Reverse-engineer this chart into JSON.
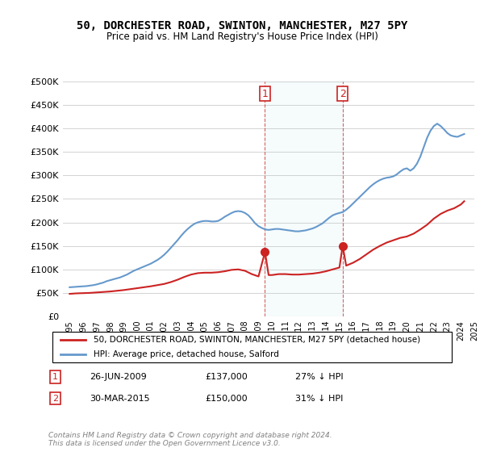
{
  "title": "50, DORCHESTER ROAD, SWINTON, MANCHESTER, M27 5PY",
  "subtitle": "Price paid vs. HM Land Registry's House Price Index (HPI)",
  "xlabel": "",
  "ylabel": "",
  "ylim": [
    0,
    500000
  ],
  "yticks": [
    0,
    50000,
    100000,
    150000,
    200000,
    250000,
    300000,
    350000,
    400000,
    450000,
    500000
  ],
  "ytick_labels": [
    "£0",
    "£50K",
    "£100K",
    "£150K",
    "£200K",
    "£250K",
    "£300K",
    "£350K",
    "£400K",
    "£450K",
    "£500K"
  ],
  "background_color": "#ffffff",
  "plot_bg_color": "#ffffff",
  "hpi_color": "#6699cc",
  "price_color": "#cc2222",
  "sale1_date": 2009.48,
  "sale1_price": 137000,
  "sale2_date": 2015.24,
  "sale2_price": 150000,
  "legend_entries": [
    "50, DORCHESTER ROAD, SWINTON, MANCHESTER, M27 5PY (detached house)",
    "HPI: Average price, detached house, Salford"
  ],
  "annotation1": [
    "1",
    "26-JUN-2009",
    "£137,000",
    "27% ↓ HPI"
  ],
  "annotation2": [
    "2",
    "30-MAR-2015",
    "£150,000",
    "31% ↓ HPI"
  ],
  "footer": "Contains HM Land Registry data © Crown copyright and database right 2024.\nThis data is licensed under the Open Government Licence v3.0.",
  "hpi_data": {
    "years": [
      1995.0,
      1995.25,
      1995.5,
      1995.75,
      1996.0,
      1996.25,
      1996.5,
      1996.75,
      1997.0,
      1997.25,
      1997.5,
      1997.75,
      1998.0,
      1998.25,
      1998.5,
      1998.75,
      1999.0,
      1999.25,
      1999.5,
      1999.75,
      2000.0,
      2000.25,
      2000.5,
      2000.75,
      2001.0,
      2001.25,
      2001.5,
      2001.75,
      2002.0,
      2002.25,
      2002.5,
      2002.75,
      2003.0,
      2003.25,
      2003.5,
      2003.75,
      2004.0,
      2004.25,
      2004.5,
      2004.75,
      2005.0,
      2005.25,
      2005.5,
      2005.75,
      2006.0,
      2006.25,
      2006.5,
      2006.75,
      2007.0,
      2007.25,
      2007.5,
      2007.75,
      2008.0,
      2008.25,
      2008.5,
      2008.75,
      2009.0,
      2009.25,
      2009.5,
      2009.75,
      2010.0,
      2010.25,
      2010.5,
      2010.75,
      2011.0,
      2011.25,
      2011.5,
      2011.75,
      2012.0,
      2012.25,
      2012.5,
      2012.75,
      2013.0,
      2013.25,
      2013.5,
      2013.75,
      2014.0,
      2014.25,
      2014.5,
      2014.75,
      2015.0,
      2015.25,
      2015.5,
      2015.75,
      2016.0,
      2016.25,
      2016.5,
      2016.75,
      2017.0,
      2017.25,
      2017.5,
      2017.75,
      2018.0,
      2018.25,
      2018.5,
      2018.75,
      2019.0,
      2019.25,
      2019.5,
      2019.75,
      2020.0,
      2020.25,
      2020.5,
      2020.75,
      2021.0,
      2021.25,
      2021.5,
      2021.75,
      2022.0,
      2022.25,
      2022.5,
      2022.75,
      2023.0,
      2023.25,
      2023.5,
      2023.75,
      2024.0,
      2024.25
    ],
    "values": [
      62000,
      62500,
      63000,
      63500,
      64000,
      64500,
      65500,
      66500,
      68000,
      70000,
      72000,
      75000,
      77000,
      79000,
      81000,
      83000,
      86000,
      89000,
      93000,
      97000,
      100000,
      103000,
      106000,
      109000,
      112000,
      116000,
      120000,
      125000,
      131000,
      138000,
      146000,
      154000,
      162000,
      171000,
      179000,
      186000,
      192000,
      197000,
      200000,
      202000,
      203000,
      203000,
      202000,
      202000,
      203000,
      207000,
      212000,
      216000,
      220000,
      223000,
      224000,
      223000,
      220000,
      215000,
      207000,
      198000,
      192000,
      188000,
      185000,
      184000,
      185000,
      186000,
      186000,
      185000,
      184000,
      183000,
      182000,
      181000,
      181000,
      182000,
      183000,
      185000,
      187000,
      190000,
      194000,
      198000,
      204000,
      210000,
      215000,
      218000,
      220000,
      222000,
      227000,
      233000,
      240000,
      247000,
      254000,
      261000,
      268000,
      275000,
      281000,
      286000,
      290000,
      293000,
      295000,
      296000,
      298000,
      302000,
      308000,
      313000,
      315000,
      310000,
      315000,
      325000,
      340000,
      360000,
      380000,
      395000,
      405000,
      410000,
      405000,
      398000,
      390000,
      385000,
      383000,
      382000,
      385000,
      388000
    ]
  },
  "price_data": {
    "years": [
      1995.0,
      1995.5,
      1996.0,
      1996.5,
      1997.0,
      1997.5,
      1998.0,
      1998.5,
      1999.0,
      1999.5,
      2000.0,
      2000.5,
      2001.0,
      2001.5,
      2002.0,
      2002.5,
      2003.0,
      2003.5,
      2004.0,
      2004.5,
      2005.0,
      2005.5,
      2006.0,
      2006.5,
      2007.0,
      2007.5,
      2008.0,
      2008.5,
      2009.0,
      2009.48,
      2009.75,
      2010.0,
      2010.5,
      2011.0,
      2011.5,
      2012.0,
      2012.5,
      2013.0,
      2013.5,
      2014.0,
      2014.5,
      2015.0,
      2015.24,
      2015.5,
      2016.0,
      2016.5,
      2017.0,
      2017.5,
      2018.0,
      2018.5,
      2019.0,
      2019.5,
      2020.0,
      2020.5,
      2021.0,
      2021.5,
      2022.0,
      2022.5,
      2023.0,
      2023.5,
      2024.0,
      2024.25
    ],
    "values": [
      48000,
      49000,
      49500,
      50000,
      51000,
      52000,
      53000,
      54500,
      56000,
      58000,
      60000,
      62000,
      64000,
      66500,
      69000,
      73000,
      78000,
      84000,
      89000,
      92000,
      93000,
      93000,
      94000,
      96000,
      99000,
      100000,
      97000,
      90000,
      85000,
      137000,
      88000,
      88000,
      90000,
      90000,
      89000,
      89000,
      90000,
      91000,
      93000,
      96000,
      100000,
      104000,
      150000,
      108000,
      114000,
      122000,
      132000,
      142000,
      150000,
      157000,
      162000,
      167000,
      170000,
      176000,
      185000,
      195000,
      208000,
      218000,
      225000,
      230000,
      238000,
      245000
    ]
  }
}
